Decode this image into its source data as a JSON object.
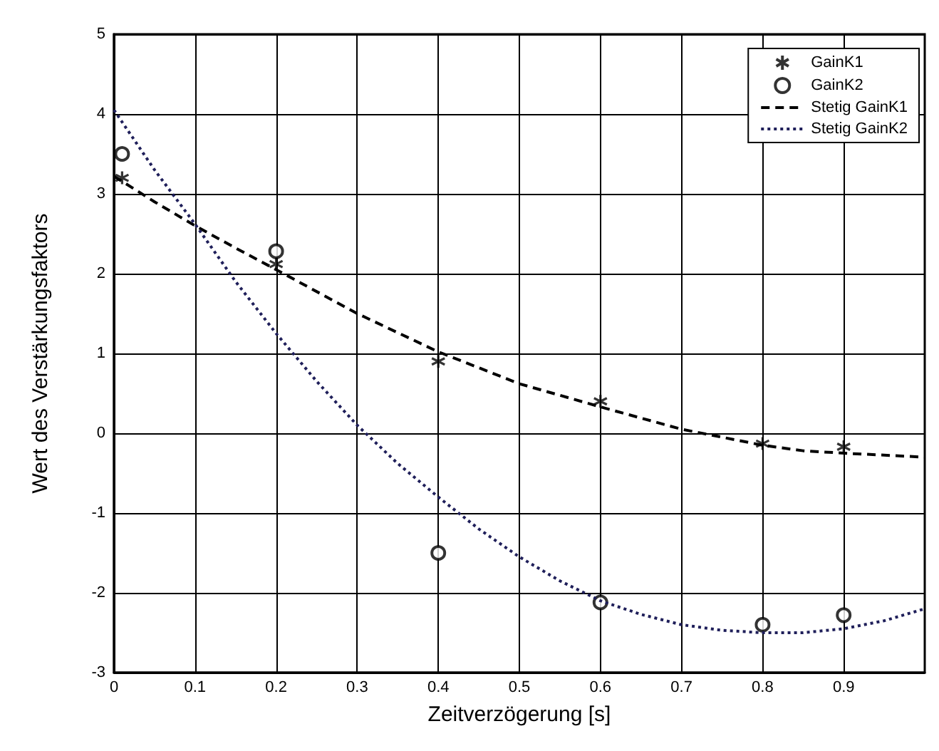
{
  "chart_data": {
    "type": "scatter",
    "xlabel": "Zeitverzögerung [s]",
    "ylabel": "Wert des Verstärkungsfaktors",
    "xlim": [
      0,
      1
    ],
    "ylim": [
      -3,
      5
    ],
    "xticks": [
      0,
      0.1,
      0.2,
      0.3,
      0.4,
      0.5,
      0.6,
      0.7,
      0.8,
      0.9
    ],
    "yticks": [
      -3,
      -2,
      -1,
      0,
      1,
      2,
      3,
      4,
      5
    ],
    "grid": true,
    "legend": "top right",
    "series": [
      {
        "name": "GainK1",
        "marker": "cross",
        "color": "#000000",
        "x": [
          0.01,
          0.2,
          0.4,
          0.6,
          0.8,
          0.9
        ],
        "values": [
          3.2,
          2.12,
          0.9,
          0.4,
          -0.13,
          -0.17
        ]
      },
      {
        "name": "GainK2",
        "marker": "circle",
        "color": "#000000",
        "x": [
          0.01,
          0.2,
          0.4,
          0.6,
          0.8,
          0.9
        ],
        "values": [
          3.5,
          2.28,
          -1.5,
          -2.12,
          -2.4,
          -2.28
        ]
      },
      {
        "name": "Stetig GainK1",
        "type": "line",
        "marker": "none",
        "line_style": "dashed",
        "color": "#000000",
        "x": [
          0,
          0.05,
          0.1,
          0.15,
          0.2,
          0.3,
          0.4,
          0.5,
          0.6,
          0.7,
          0.8,
          0.85,
          0.9,
          1.0
        ],
        "values": [
          3.22,
          2.9,
          2.6,
          2.32,
          2.05,
          1.5,
          1.02,
          0.62,
          0.33,
          0.05,
          -0.15,
          -0.22,
          -0.25,
          -0.3
        ]
      },
      {
        "name": "Stetig GainK2",
        "type": "line",
        "marker": "none",
        "line_style": "dotted",
        "color": "#1f1f5a",
        "x": [
          0,
          0.05,
          0.1,
          0.15,
          0.2,
          0.25,
          0.3,
          0.35,
          0.4,
          0.45,
          0.5,
          0.55,
          0.6,
          0.65,
          0.7,
          0.75,
          0.8,
          0.85,
          0.9,
          0.95,
          1.0
        ],
        "values": [
          4.05,
          3.3,
          2.62,
          1.9,
          1.25,
          0.65,
          0.1,
          -0.38,
          -0.8,
          -1.2,
          -1.55,
          -1.85,
          -2.1,
          -2.27,
          -2.4,
          -2.47,
          -2.5,
          -2.5,
          -2.45,
          -2.35,
          -2.2
        ]
      }
    ]
  }
}
